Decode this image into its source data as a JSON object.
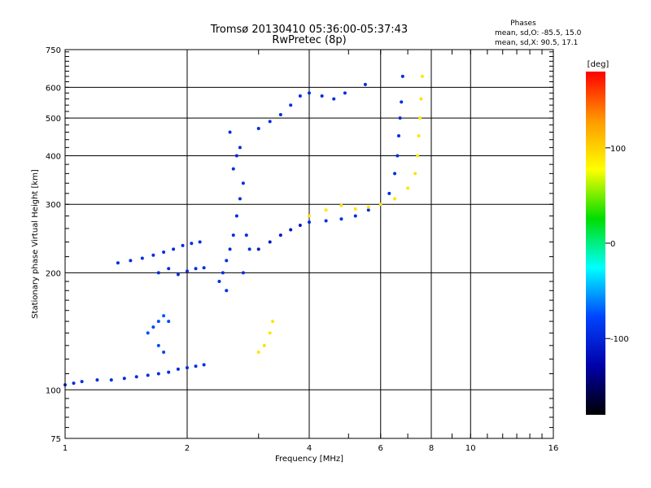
{
  "chart_data": {
    "type": "scatter",
    "title": "Tromsø 20130410 05:36:00-05:37:43",
    "subtitle": "RwPretec (8p)",
    "xlabel": "Frequency [MHz]",
    "ylabel": "Stationary phase Virtual Height [km]",
    "x_scale": "log",
    "y_scale": "log",
    "xlim": [
      1,
      16
    ],
    "ylim": [
      75,
      750
    ],
    "x_ticks": [
      1,
      2,
      4,
      6,
      8,
      10,
      16
    ],
    "x_tick_labels": [
      "1",
      "2",
      "4",
      "6",
      "8",
      "10",
      "16"
    ],
    "y_ticks": [
      75,
      100,
      200,
      300,
      400,
      500,
      600,
      750
    ],
    "y_tick_labels": [
      "75",
      "100",
      "200",
      "300",
      "400",
      "500",
      "600",
      "750"
    ],
    "grid": true,
    "legend": {
      "title": "Phases",
      "lines": [
        "mean, sd,O: -85.5, 15.0",
        "mean, sd,X:  90.5, 17.1"
      ]
    },
    "colorbar": {
      "label": "[deg]",
      "range": [
        -180,
        180
      ],
      "ticks": [
        100,
        0,
        -100
      ],
      "tick_labels": [
        "100",
        "0",
        "-100"
      ],
      "colors": [
        "#ff0000",
        "#ff9900",
        "#ffff00",
        "#00dd00",
        "#00ffff",
        "#0044ff",
        "#0000aa",
        "#000000"
      ]
    },
    "series": [
      {
        "name": "",
        "points": [
          [
            1.0,
            103,
            -95
          ],
          [
            1.05,
            104,
            -95
          ],
          [
            1.1,
            105,
            -94
          ],
          [
            1.2,
            106,
            -95
          ],
          [
            1.3,
            106,
            -96
          ],
          [
            1.4,
            107,
            -95
          ],
          [
            1.5,
            108,
            -96
          ],
          [
            1.6,
            109,
            -94
          ],
          [
            1.7,
            110,
            -95
          ],
          [
            1.8,
            111,
            -95
          ],
          [
            1.9,
            113,
            -96
          ],
          [
            2.0,
            114,
            -95
          ],
          [
            2.1,
            115,
            -94
          ],
          [
            2.2,
            116,
            -95
          ],
          [
            1.35,
            212,
            -95
          ],
          [
            1.45,
            215,
            -96
          ],
          [
            1.55,
            218,
            -94
          ],
          [
            1.65,
            222,
            -95
          ],
          [
            1.75,
            226,
            -95
          ],
          [
            1.85,
            230,
            -96
          ],
          [
            1.95,
            235,
            -95
          ],
          [
            2.05,
            238,
            -94
          ],
          [
            2.15,
            240,
            -95
          ],
          [
            1.7,
            200,
            -96
          ],
          [
            1.8,
            205,
            -95
          ],
          [
            1.9,
            198,
            -94
          ],
          [
            2.0,
            202,
            -95
          ],
          [
            2.1,
            205,
            -96
          ],
          [
            2.2,
            206,
            -95
          ],
          [
            1.6,
            140,
            -75
          ],
          [
            1.65,
            145,
            -78
          ],
          [
            1.7,
            150,
            -75
          ],
          [
            1.75,
            155,
            -72
          ],
          [
            1.8,
            150,
            -76
          ],
          [
            1.7,
            130,
            -75
          ],
          [
            1.75,
            125,
            -78
          ],
          [
            2.4,
            190,
            -95
          ],
          [
            2.45,
            200,
            -94
          ],
          [
            2.5,
            215,
            -96
          ],
          [
            2.55,
            230,
            -95
          ],
          [
            2.6,
            250,
            -94
          ],
          [
            2.65,
            280,
            -95
          ],
          [
            2.7,
            310,
            -96
          ],
          [
            2.75,
            340,
            -95
          ],
          [
            2.6,
            370,
            -94
          ],
          [
            2.65,
            400,
            -95
          ],
          [
            2.7,
            420,
            -96
          ],
          [
            2.55,
            460,
            -95
          ],
          [
            2.8,
            250,
            -95
          ],
          [
            2.85,
            230,
            -94
          ],
          [
            2.75,
            200,
            -95
          ],
          [
            2.5,
            180,
            -94
          ],
          [
            3.0,
            230,
            -110
          ],
          [
            3.2,
            240,
            -112
          ],
          [
            3.4,
            250,
            -110
          ],
          [
            3.6,
            258,
            -112
          ],
          [
            3.8,
            265,
            -110
          ],
          [
            4.0,
            270,
            -96
          ],
          [
            4.4,
            272,
            -95
          ],
          [
            4.8,
            275,
            -96
          ],
          [
            5.2,
            280,
            -95
          ],
          [
            5.6,
            290,
            -96
          ],
          [
            6.0,
            300,
            -95
          ],
          [
            6.3,
            320,
            -96
          ],
          [
            6.5,
            360,
            -95
          ],
          [
            6.6,
            400,
            -94
          ],
          [
            6.65,
            450,
            -95
          ],
          [
            6.7,
            500,
            -96
          ],
          [
            6.75,
            550,
            -95
          ],
          [
            6.8,
            640,
            -96
          ],
          [
            3.0,
            470,
            -96
          ],
          [
            3.2,
            490,
            -95
          ],
          [
            3.4,
            510,
            -96
          ],
          [
            3.6,
            540,
            -95
          ],
          [
            3.8,
            570,
            -96
          ],
          [
            4.0,
            580,
            -95
          ],
          [
            4.3,
            570,
            -96
          ],
          [
            4.6,
            560,
            -95
          ],
          [
            4.9,
            580,
            -96
          ],
          [
            5.5,
            610,
            -95
          ],
          [
            3.0,
            125,
            90
          ],
          [
            3.1,
            130,
            92
          ],
          [
            3.2,
            140,
            90
          ],
          [
            3.25,
            150,
            91
          ],
          [
            4.0,
            280,
            92
          ],
          [
            4.4,
            290,
            90
          ],
          [
            4.8,
            298,
            91
          ],
          [
            5.2,
            292,
            90
          ],
          [
            5.6,
            295,
            92
          ],
          [
            6.0,
            300,
            90
          ],
          [
            6.5,
            310,
            91
          ],
          [
            7.0,
            330,
            90
          ],
          [
            7.3,
            360,
            92
          ],
          [
            7.4,
            400,
            90
          ],
          [
            7.45,
            450,
            91
          ],
          [
            7.5,
            500,
            90
          ],
          [
            7.55,
            560,
            92
          ],
          [
            7.6,
            640,
            90
          ]
        ]
      }
    ]
  }
}
